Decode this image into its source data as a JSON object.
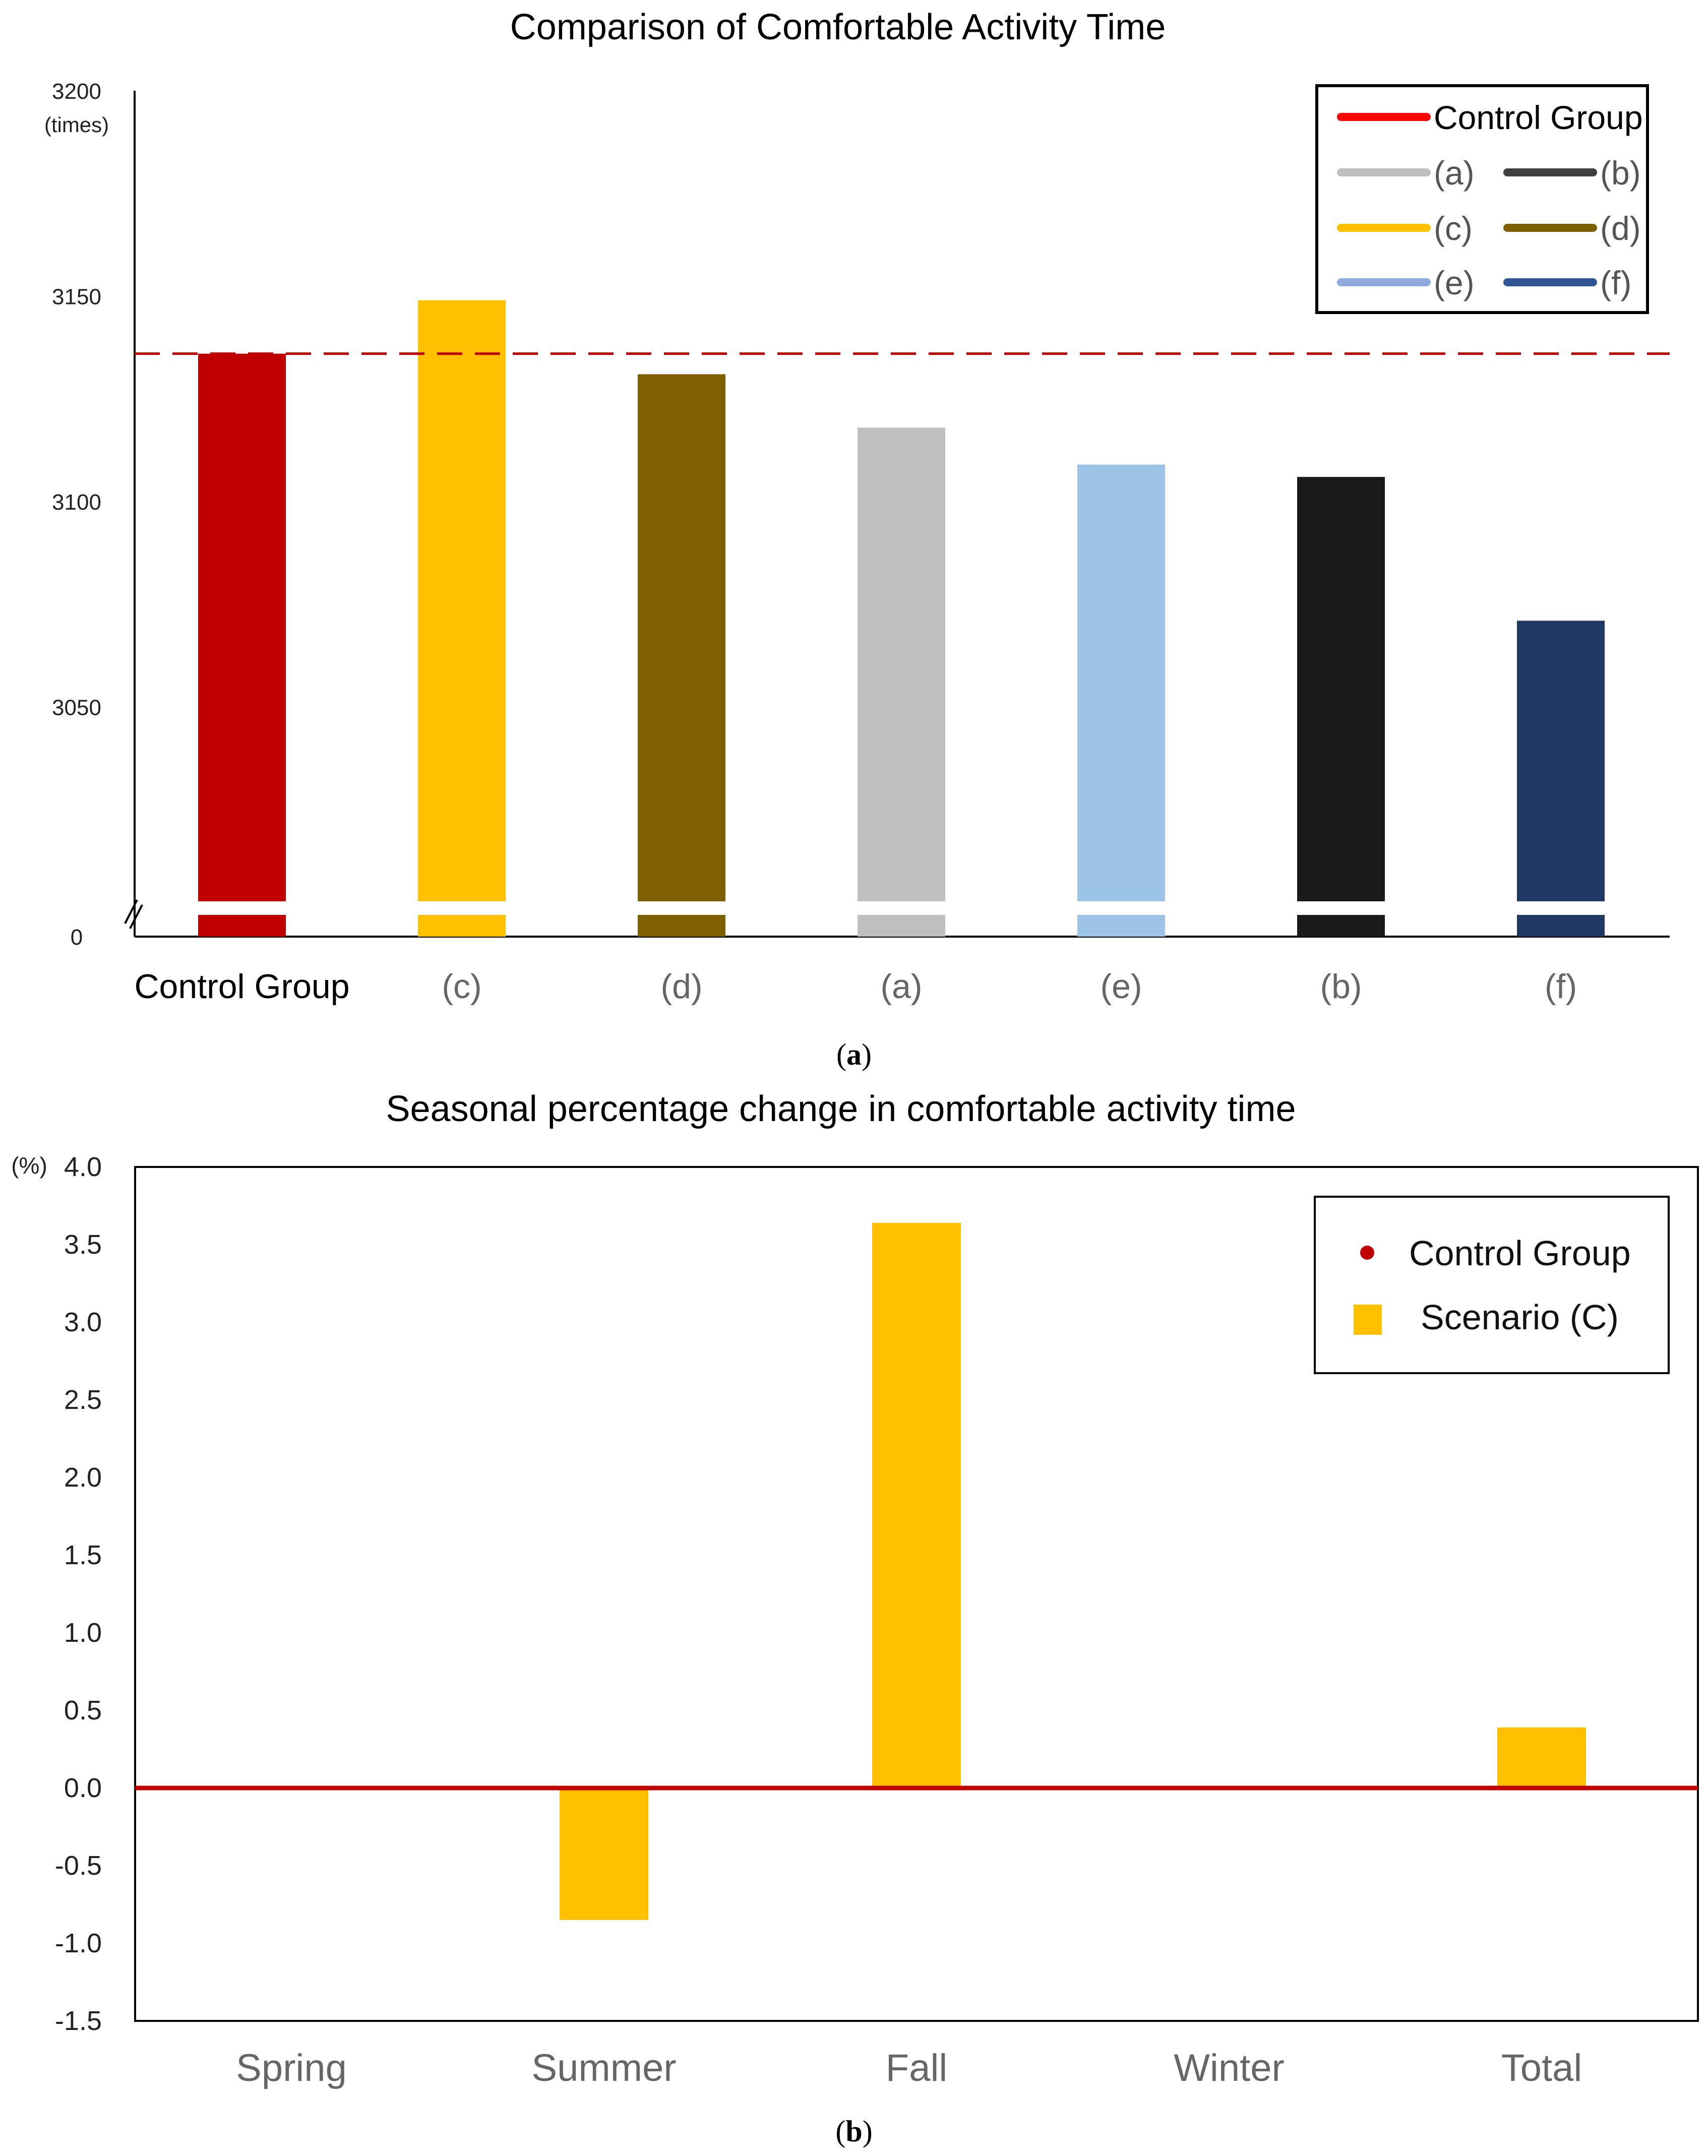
{
  "chart_data": [
    {
      "id": "a",
      "type": "bar",
      "title": "Comparison of Comfortable Activity Time",
      "ylabel_unit": "(times)",
      "yticks": [
        3200,
        3150,
        3100,
        3050,
        0
      ],
      "ylim": [
        3000,
        3200
      ],
      "axis_break": true,
      "categories": [
        "Control  Group",
        "(c)",
        "(d)",
        "(a)",
        "(e)",
        "(b)",
        "(f)"
      ],
      "values": [
        3136,
        3149,
        3131,
        3118,
        3109,
        3106,
        3071
      ],
      "colors": [
        "#c00000",
        "#ffc000",
        "#7f6000",
        "#bfbfbf",
        "#9dc3e6",
        "#1a1a1a",
        "#203864"
      ],
      "reference_line": {
        "label": "Control Group",
        "value": 3136,
        "color": "#c00000",
        "style": "dashed"
      },
      "legend": [
        {
          "label": "Control  Group",
          "color": "#ff0000"
        },
        {
          "label": "(a)",
          "color": "#bfbfbf"
        },
        {
          "label": "(b)",
          "color": "#404040"
        },
        {
          "label": "(c)",
          "color": "#ffc000"
        },
        {
          "label": "(d)",
          "color": "#7f6000"
        },
        {
          "label": "(e)",
          "color": "#8faadc"
        },
        {
          "label": "(f)",
          "color": "#2f5597"
        }
      ],
      "caption": "a"
    },
    {
      "id": "b",
      "type": "bar",
      "title": "Seasonal percentage change in comfortable activity time",
      "ylabel_unit": "(%)",
      "yticks": [
        "4.0",
        "3.5",
        "3.0",
        "2.5",
        "2.0",
        "1.5",
        "1.0",
        "0.5",
        "0.0",
        "-0.5",
        "-1.0",
        "-1.5"
      ],
      "ylim": [
        -1.5,
        4.0
      ],
      "categories": [
        "Spring",
        "Summer",
        "Fall",
        "Winter",
        "Total"
      ],
      "series": [
        {
          "name": "Control Group",
          "values": [
            0,
            0,
            0,
            0,
            0
          ],
          "color": "#c00000"
        },
        {
          "name": "Scenario (C)",
          "values": [
            0,
            -0.85,
            3.64,
            0,
            0.39
          ],
          "color": "#ffc000"
        }
      ],
      "legend": [
        {
          "label": "Control Group",
          "color": "#c00000",
          "marker": "dot"
        },
        {
          "label": "Scenario (C)",
          "color": "#ffc000",
          "marker": "square"
        }
      ],
      "caption": "b"
    }
  ]
}
